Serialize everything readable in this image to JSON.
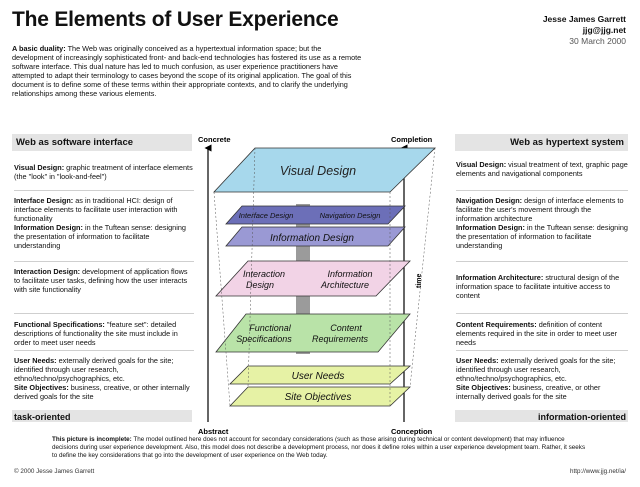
{
  "title": "The Elements of User Experience",
  "author": {
    "name": "Jesse James Garrett",
    "email": "jjg@jjg.net",
    "date": "30 March 2000"
  },
  "intro": {
    "lead": "A basic duality:",
    "text": "The Web was originally conceived as a hypertextual information space; but the development of increasingly sophisticated front- and back-end technologies has fostered its use as a remote software interface. This dual nature has led to much confusion, as user experience practitioners have attempted to adapt their terminology to cases beyond the scope of its original application. The goal of this document is to define some of these terms within their appropriate contexts, and to clarify the underlying relationships among these various elements."
  },
  "columns": {
    "left_title": "Web as software interface",
    "right_title": "Web as hypertext system",
    "left_foot": "task-oriented",
    "right_foot": "information-oriented"
  },
  "left_blocks": [
    [
      {
        "term": "Visual Design:",
        "text": " graphic treatment of interface elements (the \"look\" in \"look-and-feel\")"
      }
    ],
    [
      {
        "term": "Interface Design:",
        "text": " as in traditional HCI: design of interface elements to facilitate user interaction with functionality"
      },
      {
        "term": "Information Design:",
        "text": " in the Tuftean sense: designing the presentation of information to facilitate understanding"
      }
    ],
    [
      {
        "term": "Interaction Design:",
        "text": " development of application flows to facilitate user tasks, defining how the user interacts with site functionality"
      }
    ],
    [
      {
        "term": "Functional Specifications:",
        "text": " \"feature set\": detailed descriptions of functionality the site must include in order to meet user needs"
      }
    ],
    [
      {
        "term": "User Needs:",
        "text": " externally derived goals for the site; identified through user research, ethno/techno/psychographics, etc."
      },
      {
        "term": "Site Objectives:",
        "text": " business, creative, or other internally derived goals for the site"
      }
    ]
  ],
  "right_blocks": [
    [
      {
        "term": "Visual Design:",
        "text": " visual treatment of text, graphic page elements and navigational components"
      }
    ],
    [
      {
        "term": "Navigation Design:",
        "text": " design of interface elements to facilitate the user's movement through the information architecture"
      },
      {
        "term": "Information Design:",
        "text": " in the Tuftean sense: designing the presentation of information to facilitate understanding"
      }
    ],
    [
      {
        "term": "Information Architecture:",
        "text": " structural design of the information space to facilitate intuitive access to content"
      }
    ],
    [
      {
        "term": "Content Requirements:",
        "text": " definition of content elements required in the site in order to meet user needs"
      }
    ],
    [
      {
        "term": "User Needs:",
        "text": " externally derived goals for the site; identified through user research, ethno/techno/psychographics, etc."
      },
      {
        "term": "Site Objectives:",
        "text": " business, creative, or other internally derived goals for the site"
      }
    ]
  ],
  "diagram": {
    "concrete": "Concrete",
    "completion": "Completion",
    "abstract": "Abstract",
    "conception": "Conception",
    "time": "time",
    "planes": {
      "visual_design": "Visual Design",
      "interface_design": "Interface Design",
      "navigation_design": "Navigation Design",
      "information_design": "Information Design",
      "interaction_design": [
        "Interaction",
        "Design"
      ],
      "information_architecture": [
        "Information",
        "Architecture"
      ],
      "functional_specifications": [
        "Functional",
        "Specifications"
      ],
      "content_requirements": [
        "Content",
        "Requirements"
      ],
      "user_needs": "User Needs",
      "site_objectives": "Site Objectives"
    },
    "colors": {
      "visual": "#a7d8ec",
      "interface": "#6c6fb8",
      "information": "#9a99d4",
      "interaction": "#f2d3e6",
      "functional": "#b9e3a8",
      "objectives": "#e6f2a5",
      "divider": "#8a8a8a"
    }
  },
  "note": {
    "lead": "This picture is incomplete:",
    "text": " The model outlined here does not account for secondary considerations (such as those arising during technical or content development) that may influence decisions during user experience development. Also, this model does not describe a development process, nor does it define roles within a user experience development team. Rather, it seeks to define the key considerations that go into the development of user experience on the Web today."
  },
  "copyright": "© 2000 Jesse James Garrett",
  "url": "http://www.jjg.net/ia/"
}
